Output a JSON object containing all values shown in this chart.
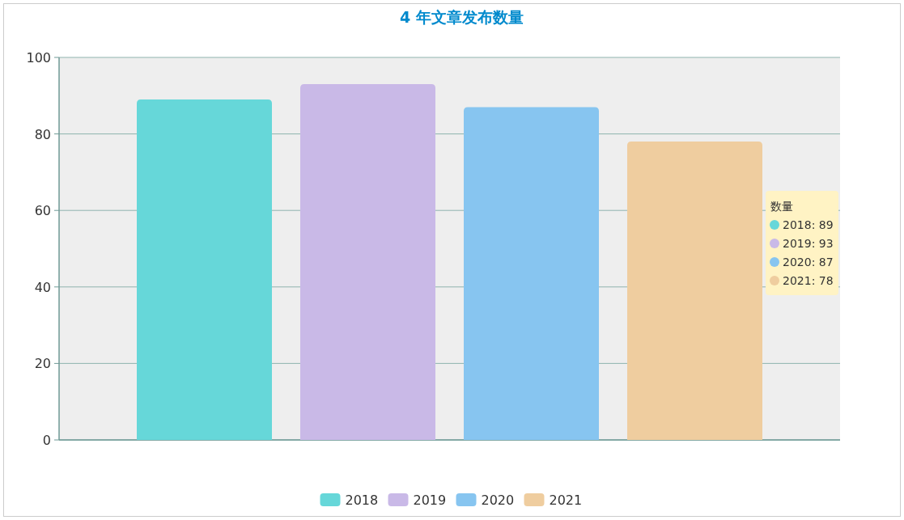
{
  "chart_data": {
    "type": "bar",
    "title": "4 年文章发布数量",
    "categories": [
      null
    ],
    "series": [
      {
        "name": "2018",
        "color": "#66d7d9",
        "values": [
          89
        ]
      },
      {
        "name": "2019",
        "color": "#c9b9e7",
        "values": [
          93
        ]
      },
      {
        "name": "2020",
        "color": "#87c5f0",
        "values": [
          87
        ]
      },
      {
        "name": "2021",
        "color": "#efcd9f",
        "values": [
          78
        ]
      }
    ],
    "ylim": [
      0,
      100
    ],
    "yticks": [
      0,
      20,
      40,
      60,
      80,
      100
    ],
    "grid": "y",
    "legend": "bottom",
    "annotations": [
      "数量",
      "2018: 89",
      "2019: 93",
      "2020: 87",
      "2021: 78"
    ]
  }
}
